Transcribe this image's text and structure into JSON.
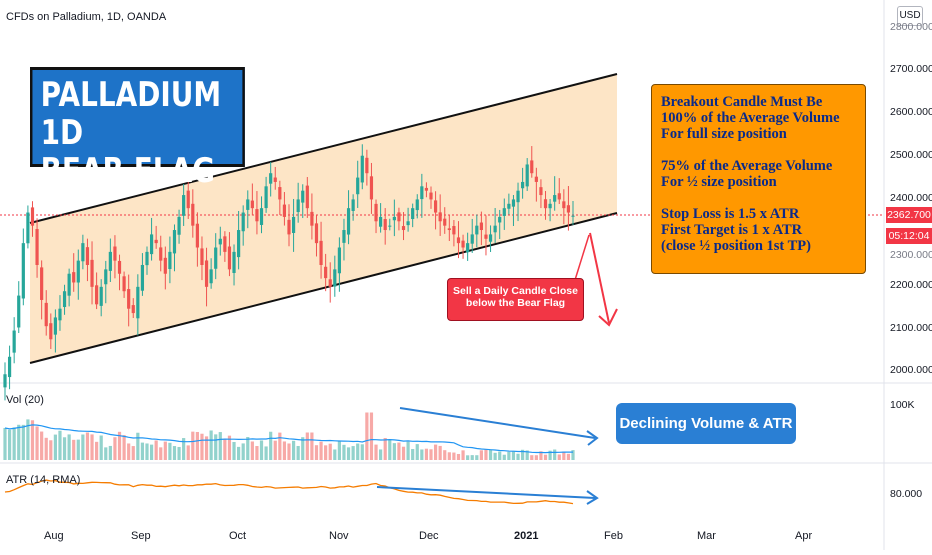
{
  "header": {
    "symbol_title": "CFDs on Palladium, 1D, OANDA",
    "currency": "USD"
  },
  "price_axis": {
    "labels": [
      "2700.000",
      "2600.000",
      "2500.000",
      "2400.000",
      "2300.000",
      "2200.000",
      "2100.000",
      "2000.000"
    ],
    "top_label_partial": "2800.000",
    "last_price": "2362.700",
    "countdown": "05:12:04"
  },
  "time_axis": {
    "labels": [
      "Aug",
      "Sep",
      "Oct",
      "Nov",
      "Dec",
      "2021",
      "Feb",
      "Mar",
      "Apr"
    ]
  },
  "volume_pane": {
    "label": "Vol (20)",
    "axis_label": "100K"
  },
  "atr_pane": {
    "label": "ATR (14, RMA)",
    "axis_label": "80.000"
  },
  "annotations": {
    "title_line1": "PALLADIUM 1D",
    "title_line2": "BEAR FLAG",
    "note_lines": [
      "Breakout Candle Must Be",
      "100% of the Average Volume",
      "For full size position",
      "",
      "75% of the Average Volume",
      "For ½ size position",
      "",
      "Stop Loss is 1.5 x ATR",
      "First Target is 1 x ATR",
      "(close ½ position 1st TP)"
    ],
    "sell_line1": "Sell a Daily Candle Close",
    "sell_line2": "below the Bear Flag",
    "volume_note": "Declining Volume & ATR"
  },
  "colors": {
    "up": "#26a69a",
    "down": "#ef5350",
    "channel_fill": "#fde5c6",
    "note_bg": "#ff9800",
    "title_bg": "#1e73c8",
    "sell_bg": "#f23645",
    "arrow": "#2a7fd4",
    "atr_line": "#f57c00",
    "vol_ma": "#2196f3"
  },
  "chart_data": [
    {
      "type": "candlestick",
      "title": "CFDs on Palladium, 1D, OANDA",
      "ylim": [
        1980,
        2830
      ],
      "closes": [
        2000,
        2040,
        2100,
        2180,
        2300,
        2370,
        2340,
        2250,
        2170,
        2110,
        2080,
        2130,
        2150,
        2190,
        2230,
        2210,
        2260,
        2300,
        2250,
        2200,
        2160,
        2200,
        2240,
        2280,
        2260,
        2230,
        2190,
        2150,
        2140,
        2200,
        2250,
        2280,
        2320,
        2300,
        2260,
        2230,
        2280,
        2330,
        2360,
        2410,
        2380,
        2340,
        2290,
        2250,
        2200,
        2240,
        2290,
        2310,
        2280,
        2240,
        2280,
        2330,
        2370,
        2400,
        2380,
        2350,
        2380,
        2430,
        2460,
        2440,
        2400,
        2360,
        2320,
        2360,
        2400,
        2420,
        2380,
        2340,
        2300,
        2250,
        2220,
        2200,
        2240,
        2290,
        2330,
        2380,
        2400,
        2450,
        2500,
        2460,
        2400,
        2350,
        2360,
        2330,
        2340,
        2360,
        2350,
        2330,
        2350,
        2380,
        2400,
        2430,
        2420,
        2400,
        2370,
        2350,
        2340,
        2330,
        2320,
        2300,
        2290,
        2300,
        2320,
        2340,
        2330,
        2310,
        2320,
        2340,
        2360,
        2380,
        2390,
        2400,
        2420,
        2440,
        2480,
        2460,
        2440,
        2410,
        2380,
        2390,
        2410,
        2400,
        2380,
        2370,
        2362.7
      ],
      "last_close": 2362.7
    },
    {
      "type": "bar",
      "name": "Vol (20)",
      "note": "declining volume into the apex of the flag"
    },
    {
      "type": "line",
      "name": "ATR (14, RMA)",
      "note": "declining ATR"
    }
  ]
}
